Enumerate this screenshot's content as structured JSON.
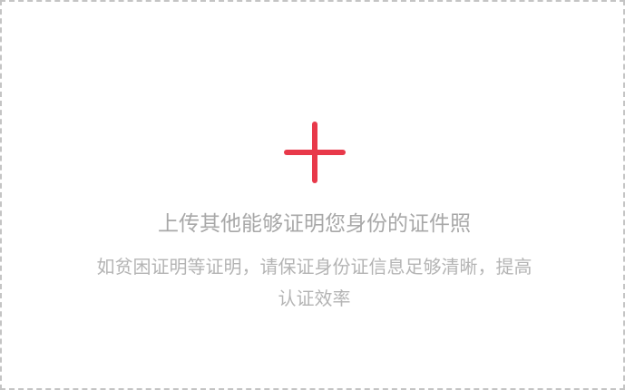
{
  "upload": {
    "icon": "plus-icon",
    "accent_color": "#e8394a",
    "title": "上传其他能够证明您身份的证件照",
    "description": "如贫困证明等证明，请保证身份证信息足够清晰，提高认证效率"
  }
}
